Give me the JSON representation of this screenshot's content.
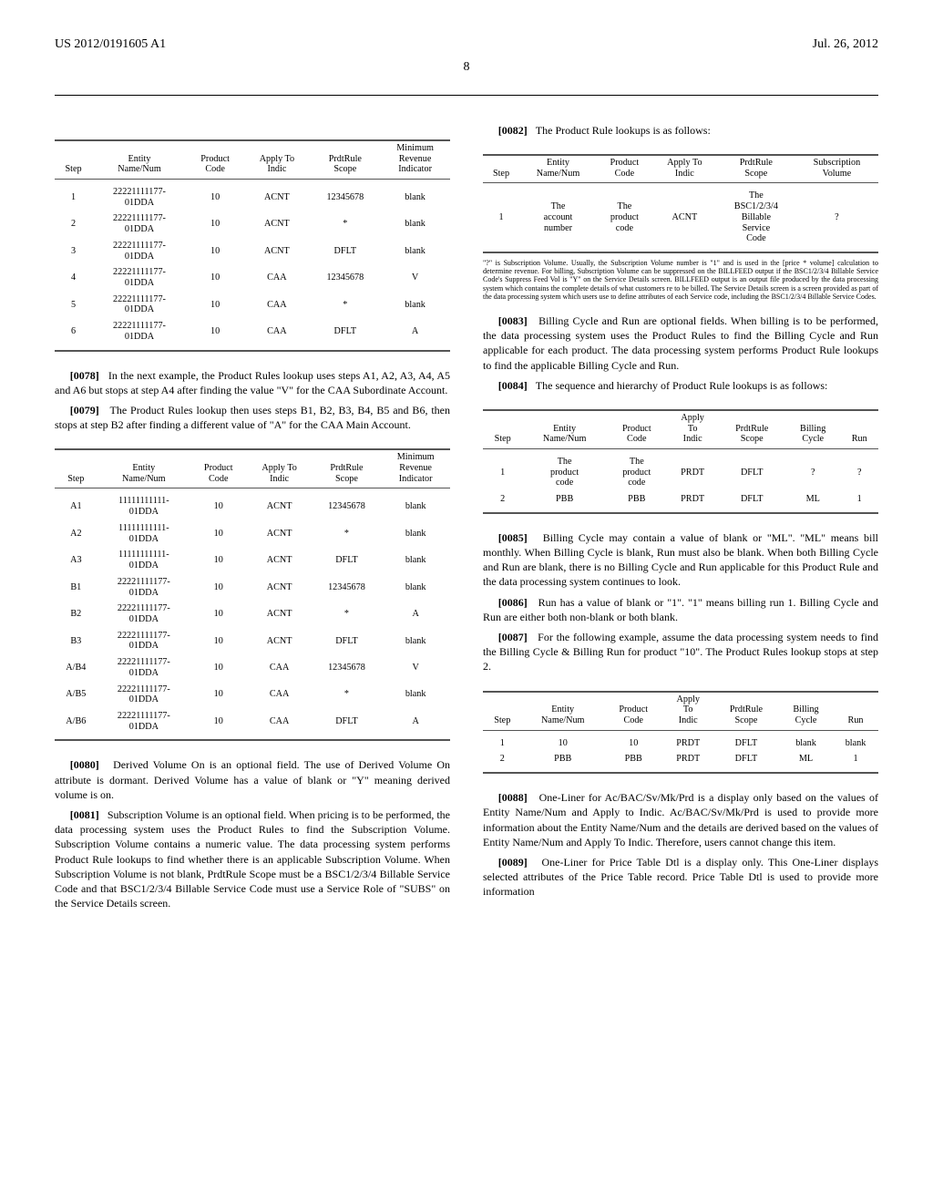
{
  "header": {
    "left": "US 2012/0191605 A1",
    "right": "Jul. 26, 2012",
    "page_number": "8"
  },
  "left_column": {
    "table1": {
      "headers": [
        "Step",
        "Entity Name/Num",
        "Product Code",
        "Apply To Indic",
        "PrdtRule Scope",
        "Minimum Revenue Indicator"
      ],
      "rows": [
        [
          "1",
          "22221111177-01DDA",
          "10",
          "ACNT",
          "12345678",
          "blank"
        ],
        [
          "2",
          "22221111177-01DDA",
          "10",
          "ACNT",
          "*",
          "blank"
        ],
        [
          "3",
          "22221111177-01DDA",
          "10",
          "ACNT",
          "DFLT",
          "blank"
        ],
        [
          "4",
          "22221111177-01DDA",
          "10",
          "CAA",
          "12345678",
          "V"
        ],
        [
          "5",
          "22221111177-01DDA",
          "10",
          "CAA",
          "*",
          "blank"
        ],
        [
          "6",
          "22221111177-01DDA",
          "10",
          "CAA",
          "DFLT",
          "A"
        ]
      ]
    },
    "p0078_num": "[0078]",
    "p0078": "In the next example, the Product Rules lookup uses steps A1, A2, A3, A4, A5 and A6 but stops at step A4 after finding the value \"V\" for the CAA Subordinate Account.",
    "p0079_num": "[0079]",
    "p0079": "The Product Rules lookup then uses steps B1, B2, B3, B4, B5 and B6, then stops at step B2 after finding a different value of \"A\" for the CAA Main Account.",
    "table2": {
      "headers": [
        "Step",
        "Entity Name/Num",
        "Product Code",
        "Apply To Indic",
        "PrdtRule Scope",
        "Minimum Revenue Indicator"
      ],
      "rows": [
        [
          "A1",
          "11111111111-01DDA",
          "10",
          "ACNT",
          "12345678",
          "blank"
        ],
        [
          "A2",
          "11111111111-01DDA",
          "10",
          "ACNT",
          "*",
          "blank"
        ],
        [
          "A3",
          "11111111111-01DDA",
          "10",
          "ACNT",
          "DFLT",
          "blank"
        ],
        [
          "B1",
          "22221111177-01DDA",
          "10",
          "ACNT",
          "12345678",
          "blank"
        ],
        [
          "B2",
          "22221111177-01DDA",
          "10",
          "ACNT",
          "*",
          "A"
        ],
        [
          "B3",
          "22221111177-01DDA",
          "10",
          "ACNT",
          "DFLT",
          "blank"
        ],
        [
          "A/B4",
          "22221111177-01DDA",
          "10",
          "CAA",
          "12345678",
          "V"
        ],
        [
          "A/B5",
          "22221111177-01DDA",
          "10",
          "CAA",
          "*",
          "blank"
        ],
        [
          "A/B6",
          "22221111177-01DDA",
          "10",
          "CAA",
          "DFLT",
          "A"
        ]
      ]
    },
    "p0080_num": "[0080]",
    "p0080": "Derived Volume On is an optional field. The use of Derived Volume On attribute is dormant. Derived Volume has a value of blank or \"Y\" meaning derived volume is on.",
    "p0081_num": "[0081]",
    "p0081": "Subscription Volume is an optional field. When pricing is to be performed, the data processing system uses the Product Rules to find the Subscription Volume. Subscription Volume contains a numeric value. The data processing system performs Product Rule lookups to find whether there is an applicable Subscription Volume. When Subscription Volume is not blank, PrdtRule Scope must be a BSC1/2/3/4 Billable Service Code and that BSC1/2/3/4 Billable Service Code must use a Service Role of \"SUBS\" on the Service Details screen."
  },
  "right_column": {
    "p0082_num": "[0082]",
    "p0082": "The Product Rule lookups is as follows:",
    "table3": {
      "headers": [
        "Step",
        "Entity Name/Num",
        "Product Code",
        "Apply To Indic",
        "PrdtRule Scope",
        "Subscription Volume"
      ],
      "rows": [
        [
          "1",
          "The account number",
          "The product code",
          "ACNT",
          "The BSC1/2/3/4 Billable Service Code",
          "?"
        ]
      ]
    },
    "footnote": "\"?\" is Subscription Volume. Usually, the Subscription Volume number is \"1\" and is used in the [price * volume] calculation to determine revenue. For billing, Subscription Volume can be suppressed on the BILLFEED output if the BSC1/2/3/4 Billable Service Code's Suppress Feed Vol is \"Y\" on the Service Details screen. BILLFEED output is an output file produced by the data processing system which contains the complete details of what customers re to be billed. The Service Details screen is a screen provided as part of the data processing system which users use to define attributes of each Service code, including the BSC1/2/3/4 Billable Service Codes.",
    "p0083_num": "[0083]",
    "p0083": "Billing Cycle and Run are optional fields. When billing is to be performed, the data processing system uses the Product Rules to find the Billing Cycle and Run applicable for each product. The data processing system performs Product Rule lookups to find the applicable Billing Cycle and Run.",
    "p0084_num": "[0084]",
    "p0084": "The sequence and hierarchy of Product Rule lookups is as follows:",
    "table4": {
      "headers": [
        "Step",
        "Entity Name/Num",
        "Product Code",
        "Apply To Indic",
        "PrdtRule Scope",
        "Billing Cycle",
        "Run"
      ],
      "rows": [
        [
          "1",
          "The product code",
          "The product code",
          "PRDT",
          "DFLT",
          "?",
          "?"
        ],
        [
          "2",
          "PBB",
          "PBB",
          "PRDT",
          "DFLT",
          "ML",
          "1"
        ]
      ]
    },
    "p0085_num": "[0085]",
    "p0085": "Billing Cycle may contain a value of blank or \"ML\". \"ML\" means bill monthly. When Billing Cycle is blank, Run must also be blank. When both Billing Cycle and Run are blank, there is no Billing Cycle and Run applicable for this Product Rule and the data processing system continues to look.",
    "p0086_num": "[0086]",
    "p0086": "Run has a value of blank or \"1\". \"1\" means billing run 1. Billing Cycle and Run are either both non-blank or both blank.",
    "p0087_num": "[0087]",
    "p0087": "For the following example, assume the data processing system needs to find the Billing Cycle & Billing Run for product \"10\". The Product Rules lookup stops at step 2.",
    "table5": {
      "headers": [
        "Step",
        "Entity Name/Num",
        "Product Code",
        "Apply To Indic",
        "PrdtRule Scope",
        "Billing Cycle",
        "Run"
      ],
      "rows": [
        [
          "1",
          "10",
          "10",
          "PRDT",
          "DFLT",
          "blank",
          "blank"
        ],
        [
          "2",
          "PBB",
          "PBB",
          "PRDT",
          "DFLT",
          "ML",
          "1"
        ]
      ]
    },
    "p0088_num": "[0088]",
    "p0088": "One-Liner for Ac/BAC/Sv/Mk/Prd is a display only based on the values of Entity Name/Num and Apply to Indic. Ac/BAC/Sv/Mk/Prd is used to provide more information about the Entity Name/Num and the details are derived based on the values of Entity Name/Num and Apply To Indic. Therefore, users cannot change this item.",
    "p0089_num": "[0089]",
    "p0089": "One-Liner for Price Table Dtl is a display only. This One-Liner displays selected attributes of the Price Table record. Price Table Dtl is used to provide more information"
  }
}
